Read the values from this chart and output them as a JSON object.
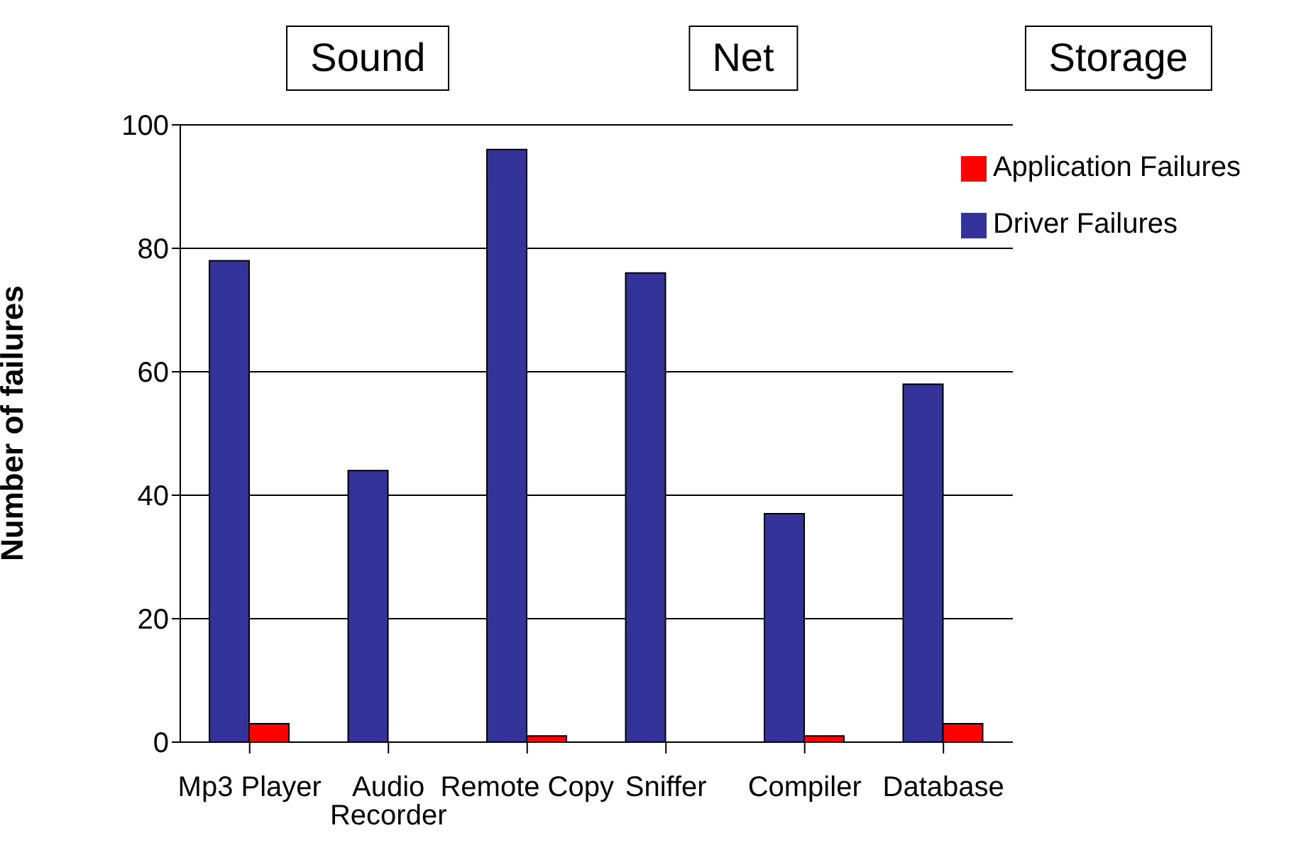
{
  "chart_data": {
    "type": "bar",
    "ylabel": "Number of failures",
    "categories": [
      "Mp3 Player",
      "Audio Recorder",
      "Remote Copy",
      "Sniffer",
      "Compiler",
      "Database"
    ],
    "series": [
      {
        "name": "Driver Failures",
        "color": "#333399",
        "values": [
          78,
          44,
          96,
          76,
          37,
          58
        ]
      },
      {
        "name": "Application Failures",
        "color": "#ff0000",
        "values": [
          3,
          0,
          1,
          0,
          1,
          3
        ]
      }
    ],
    "ylim": [
      0,
      100
    ],
    "yticks": [
      0,
      20,
      40,
      60,
      80,
      100
    ],
    "grid": "y",
    "legend": "top right",
    "annotations": [
      "Sound",
      "Net",
      "Storage"
    ]
  }
}
